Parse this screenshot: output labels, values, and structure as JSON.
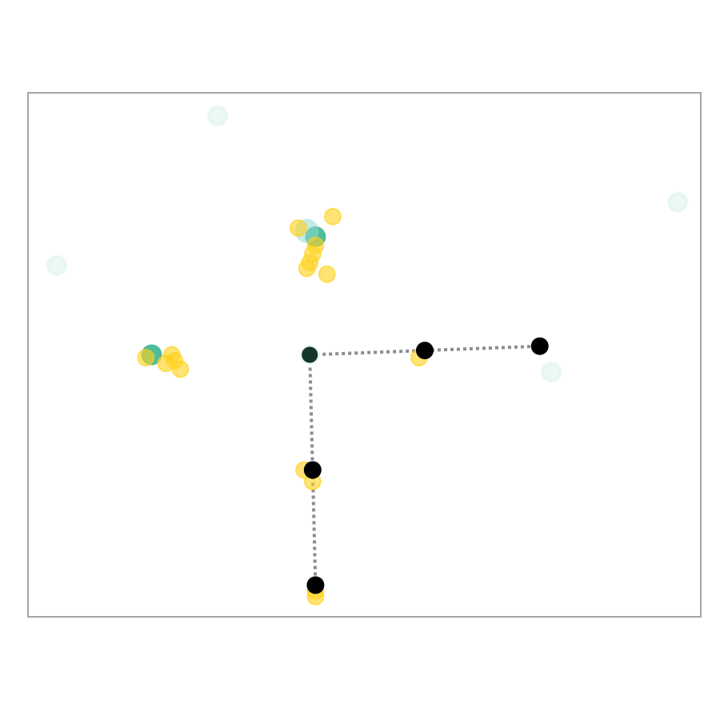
{
  "chart_data": {
    "type": "scatter",
    "title": "",
    "xlabel": "",
    "ylabel": "",
    "xlim": [
      -9.8,
      13.6
    ],
    "ylim": [
      -9.2,
      9.0
    ],
    "grid": false,
    "legend": "none",
    "axis_ticks": false,
    "colors": {
      "frame": "#a6a6a6",
      "path": "#8c8c8c",
      "path_node": "#000000",
      "teal": "#3cb58f",
      "teal_light": "#d3efe5",
      "teal_cyan": "#92d9d2",
      "yellow": "#ffd21f",
      "dark_teal": "#16352b"
    },
    "series": [
      {
        "kind": "faint-ring",
        "color": "#d3efe5",
        "points": [
          [
            -3.2,
            8.2
          ],
          [
            12.8,
            5.2
          ],
          [
            -8.8,
            3.0
          ],
          [
            8.4,
            -0.7
          ]
        ]
      },
      {
        "kind": "teal",
        "color": "#3cb58f",
        "points": [
          [
            -5.5,
            -0.1
          ],
          [
            0.2,
            4.0
          ]
        ]
      },
      {
        "kind": "cyan-pale",
        "color": "#92d9d2",
        "points": [
          [
            -0.1,
            4.2
          ]
        ]
      },
      {
        "kind": "yellow",
        "color": "#ffd21f",
        "points": [
          [
            0.8,
            4.7
          ],
          [
            -0.4,
            4.3
          ],
          [
            0.2,
            3.7
          ],
          [
            0.1,
            3.4
          ],
          [
            0.0,
            3.1
          ],
          [
            -0.1,
            2.9
          ],
          [
            0.6,
            2.7
          ],
          [
            -5.7,
            -0.2
          ],
          [
            -4.8,
            -0.1
          ],
          [
            -4.7,
            -0.3
          ],
          [
            -5.0,
            -0.4
          ],
          [
            -4.5,
            -0.6
          ],
          [
            3.8,
            -0.2
          ],
          [
            -0.2,
            -4.1
          ],
          [
            0.1,
            -4.5
          ],
          [
            0.2,
            -8.5
          ],
          [
            0.2,
            -8.3
          ]
        ]
      },
      {
        "kind": "center-node",
        "color": "#16352b",
        "points": [
          [
            0.0,
            -0.1
          ]
        ]
      },
      {
        "kind": "path-node",
        "color": "#000000",
        "points": [
          [
            4.0,
            0.05
          ],
          [
            8.0,
            0.2
          ],
          [
            0.1,
            -4.1
          ],
          [
            0.2,
            -8.1
          ]
        ]
      }
    ],
    "path_segments": [
      [
        [
          0.0,
          -0.1
        ],
        [
          4.0,
          0.05
        ]
      ],
      [
        [
          4.0,
          0.05
        ],
        [
          8.0,
          0.2
        ]
      ],
      [
        [
          0.0,
          -0.1
        ],
        [
          0.1,
          -4.1
        ]
      ],
      [
        [
          0.1,
          -4.1
        ],
        [
          0.2,
          -8.1
        ]
      ]
    ]
  }
}
